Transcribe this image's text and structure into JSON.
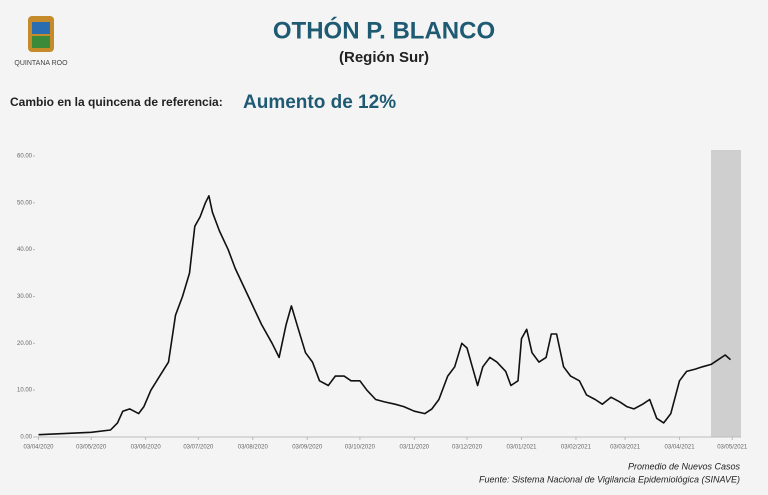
{
  "header": {
    "title": "OTHÓN P. BLANCO",
    "subtitle": "(Región Sur)",
    "logo_text": "QUINTANA ROO"
  },
  "summary": {
    "label": "Cambio en la quincena de referencia:",
    "value": "Aumento de 12%"
  },
  "chart_data": {
    "type": "line",
    "color": "#111111",
    "x": [
      "2020-04-03",
      "2020-05-03",
      "2020-05-14",
      "2020-05-18",
      "2020-05-21",
      "2020-05-25",
      "2020-05-30",
      "2020-06-02",
      "2020-06-06",
      "2020-06-11",
      "2020-06-16",
      "2020-06-20",
      "2020-06-24",
      "2020-06-28",
      "2020-07-01",
      "2020-07-04",
      "2020-07-07",
      "2020-07-09",
      "2020-07-11",
      "2020-07-15",
      "2020-07-20",
      "2020-07-24",
      "2020-07-29",
      "2020-08-03",
      "2020-08-08",
      "2020-08-14",
      "2020-08-18",
      "2020-08-22",
      "2020-08-25",
      "2020-08-29",
      "2020-09-02",
      "2020-09-06",
      "2020-09-10",
      "2020-09-15",
      "2020-09-19",
      "2020-09-24",
      "2020-09-28",
      "2020-10-03",
      "2020-10-07",
      "2020-10-12",
      "2020-10-17",
      "2020-10-23",
      "2020-10-28",
      "2020-11-03",
      "2020-11-09",
      "2020-11-13",
      "2020-11-17",
      "2020-11-22",
      "2020-11-26",
      "2020-11-30",
      "2020-12-03",
      "2020-12-06",
      "2020-12-09",
      "2020-12-12",
      "2020-12-16",
      "2020-12-20",
      "2020-12-25",
      "2020-12-28",
      "2021-01-01",
      "2021-01-03",
      "2021-01-06",
      "2021-01-09",
      "2021-01-13",
      "2021-01-17",
      "2021-01-20",
      "2021-01-23",
      "2021-01-27",
      "2021-01-31",
      "2021-02-05",
      "2021-02-09",
      "2021-02-14",
      "2021-02-18",
      "2021-02-23",
      "2021-02-28",
      "2021-03-04",
      "2021-03-08",
      "2021-03-13",
      "2021-03-17",
      "2021-03-21",
      "2021-03-25",
      "2021-03-29",
      "2021-04-03",
      "2021-04-07",
      "2021-04-12",
      "2021-04-16",
      "2021-04-21",
      "2021-04-25",
      "2021-04-29",
      "2021-05-02"
    ],
    "values": [
      0.5,
      1.0,
      1.5,
      3,
      5.5,
      6,
      5,
      6.5,
      10,
      13,
      16,
      26,
      30,
      35,
      45,
      47,
      50,
      51.5,
      48,
      44,
      40,
      36,
      32,
      28,
      24,
      20,
      17,
      24,
      28,
      23,
      18,
      16,
      12,
      11,
      13,
      13,
      12,
      12,
      10,
      8,
      7.5,
      7,
      6.5,
      5.5,
      5,
      6,
      8,
      13,
      15,
      20,
      19,
      15,
      11,
      15,
      17,
      16,
      14,
      11,
      12,
      21,
      23,
      18,
      16,
      17,
      22,
      22,
      15,
      13,
      12,
      9,
      8,
      7,
      8.5,
      7.5,
      6.5,
      6,
      7,
      8,
      4,
      3,
      5,
      12,
      14,
      14.5,
      15,
      15.5,
      16.5,
      17.5,
      16.5
    ],
    "xlim": [
      "2020-04-01",
      "2021-05-08"
    ],
    "xticks": [
      {
        "value": "2020-04-03",
        "label": "03/04/2020"
      },
      {
        "value": "2020-05-03",
        "label": "03/05/2020"
      },
      {
        "value": "2020-06-03",
        "label": "03/06/2020"
      },
      {
        "value": "2020-07-03",
        "label": "03/07/2020"
      },
      {
        "value": "2020-08-03",
        "label": "03/08/2020"
      },
      {
        "value": "2020-09-03",
        "label": "03/09/2020"
      },
      {
        "value": "2020-10-03",
        "label": "03/10/2020"
      },
      {
        "value": "2020-11-03",
        "label": "03/11/2020"
      },
      {
        "value": "2020-12-03",
        "label": "03/12/2020"
      },
      {
        "value": "2021-01-03",
        "label": "03/01/2021"
      },
      {
        "value": "2021-02-03",
        "label": "03/02/2021"
      },
      {
        "value": "2021-03-03",
        "label": "03/03/2021"
      },
      {
        "value": "2021-04-03",
        "label": "03/04/2021"
      },
      {
        "value": "2021-05-03",
        "label": "03/05/2021"
      }
    ],
    "ylim": [
      0,
      60
    ],
    "yticks": [
      {
        "value": 0,
        "label": "0.00"
      },
      {
        "value": 10,
        "label": "10.00"
      },
      {
        "value": 20,
        "label": "20.00"
      },
      {
        "value": 30,
        "label": "30.00"
      },
      {
        "value": 40,
        "label": "40.00"
      },
      {
        "value": 50,
        "label": "50.00"
      },
      {
        "value": 60,
        "label": "60.00"
      }
    ],
    "grid": false
  },
  "footer": {
    "line1": "Promedio de Nuevos Casos",
    "line2": "Fuente: Sistema Nacional de Vigilancia Epidemiológica (SINAVE)"
  }
}
